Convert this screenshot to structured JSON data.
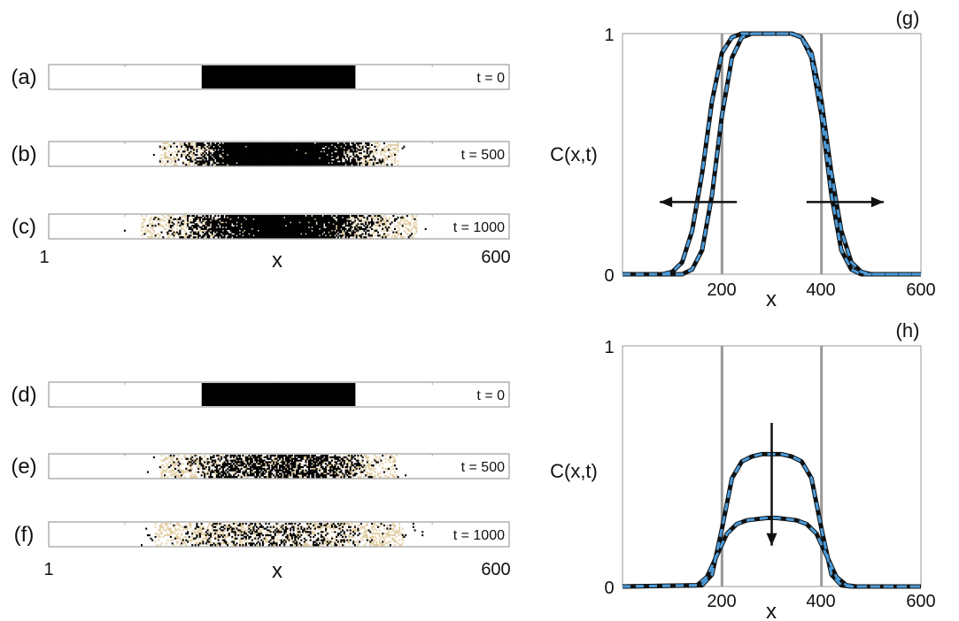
{
  "strips": {
    "x_start": "1",
    "x_end": "600",
    "xlabel": "x",
    "panels": [
      {
        "label": "(a)",
        "time": "t = 0"
      },
      {
        "label": "(b)",
        "time": "t = 500"
      },
      {
        "label": "(c)",
        "time": "t = 1000"
      },
      {
        "label": "(d)",
        "time": "t = 0"
      },
      {
        "label": "(e)",
        "time": "t = 500"
      },
      {
        "label": "(f)",
        "time": "t = 1000"
      }
    ]
  },
  "colors": {
    "agent": "#000000",
    "agent_speckle": "#c8a050",
    "simulation": "#111111",
    "continuum": "#4a9ad8",
    "initial_edge": "#999999",
    "arrow": "#111111"
  },
  "chart_data": [
    {
      "panel": "(g)",
      "type": "line",
      "xlabel": "x",
      "ylabel": "C(x,t)",
      "xlim": [
        0,
        600
      ],
      "ylim": [
        0,
        1
      ],
      "xticks": [
        "200",
        "400",
        "600"
      ],
      "yticks": [
        "0",
        "1"
      ],
      "initial_edges": [
        200,
        400
      ],
      "arrows": "outward",
      "grid": false,
      "series": [
        {
          "style": "simulation",
          "x": [
            0,
            80,
            100,
            120,
            140,
            160,
            180,
            200,
            220,
            240,
            260,
            300,
            340,
            360,
            380,
            400,
            420,
            440,
            460,
            480,
            500,
            520,
            600
          ],
          "values": [
            0,
            0,
            0.01,
            0.05,
            0.18,
            0.42,
            0.72,
            0.92,
            0.985,
            1,
            1,
            1,
            1,
            0.985,
            0.92,
            0.72,
            0.42,
            0.18,
            0.05,
            0.01,
            0,
            0,
            0
          ]
        },
        {
          "style": "continuum",
          "x": [
            0,
            80,
            100,
            120,
            140,
            160,
            180,
            200,
            220,
            240,
            260,
            300,
            340,
            360,
            380,
            400,
            420,
            440,
            460,
            480,
            500,
            520,
            600
          ],
          "values": [
            0,
            0,
            0.01,
            0.05,
            0.18,
            0.42,
            0.72,
            0.92,
            0.985,
            1,
            1,
            1,
            1,
            0.985,
            0.92,
            0.72,
            0.42,
            0.18,
            0.05,
            0.01,
            0,
            0,
            0
          ]
        },
        {
          "style": "simulation",
          "x": [
            0,
            120,
            140,
            160,
            180,
            200,
            220,
            240,
            260,
            300,
            340,
            360,
            380,
            400,
            420,
            440,
            460,
            480,
            600
          ],
          "values": [
            0,
            0,
            0.02,
            0.1,
            0.33,
            0.66,
            0.9,
            0.985,
            1,
            1,
            1,
            0.985,
            0.9,
            0.66,
            0.33,
            0.1,
            0.02,
            0,
            0
          ]
        },
        {
          "style": "continuum",
          "x": [
            0,
            120,
            140,
            160,
            180,
            200,
            220,
            240,
            260,
            300,
            340,
            360,
            380,
            400,
            420,
            440,
            460,
            480,
            600
          ],
          "values": [
            0,
            0,
            0.02,
            0.1,
            0.33,
            0.66,
            0.9,
            0.985,
            1,
            1,
            1,
            0.985,
            0.9,
            0.66,
            0.33,
            0.1,
            0.02,
            0,
            0
          ]
        }
      ]
    },
    {
      "panel": "(h)",
      "type": "line",
      "xlabel": "x",
      "ylabel": "C(x,t)",
      "xlim": [
        0,
        600
      ],
      "ylim": [
        0,
        1
      ],
      "xticks": [
        "200",
        "400",
        "600"
      ],
      "yticks": [
        "0",
        "1"
      ],
      "initial_edges": [
        200,
        400
      ],
      "arrows": "downward",
      "grid": false,
      "series": [
        {
          "style": "simulation",
          "x": [
            0,
            160,
            180,
            200,
            220,
            240,
            260,
            280,
            300,
            320,
            340,
            360,
            380,
            400,
            420,
            440,
            460,
            600
          ],
          "values": [
            0,
            0.005,
            0.05,
            0.24,
            0.45,
            0.52,
            0.54,
            0.55,
            0.55,
            0.55,
            0.54,
            0.52,
            0.45,
            0.24,
            0.05,
            0.005,
            0,
            0
          ]
        },
        {
          "style": "continuum",
          "x": [
            0,
            160,
            180,
            200,
            220,
            240,
            260,
            280,
            300,
            320,
            340,
            360,
            380,
            400,
            420,
            440,
            460,
            600
          ],
          "values": [
            0,
            0.005,
            0.05,
            0.24,
            0.45,
            0.52,
            0.54,
            0.55,
            0.55,
            0.55,
            0.54,
            0.52,
            0.45,
            0.24,
            0.05,
            0.005,
            0,
            0
          ]
        },
        {
          "style": "simulation",
          "x": [
            0,
            150,
            170,
            190,
            210,
            230,
            250,
            270,
            290,
            310,
            330,
            350,
            370,
            390,
            410,
            430,
            450,
            470,
            600
          ],
          "values": [
            0,
            0.005,
            0.04,
            0.13,
            0.22,
            0.26,
            0.275,
            0.28,
            0.285,
            0.285,
            0.28,
            0.275,
            0.26,
            0.22,
            0.13,
            0.04,
            0.005,
            0,
            0
          ]
        },
        {
          "style": "continuum",
          "x": [
            0,
            150,
            170,
            190,
            210,
            230,
            250,
            270,
            290,
            310,
            330,
            350,
            370,
            390,
            410,
            430,
            450,
            470,
            600
          ],
          "values": [
            0,
            0.005,
            0.04,
            0.13,
            0.22,
            0.26,
            0.275,
            0.28,
            0.285,
            0.285,
            0.28,
            0.275,
            0.26,
            0.22,
            0.13,
            0.04,
            0.005,
            0,
            0
          ]
        }
      ]
    }
  ]
}
